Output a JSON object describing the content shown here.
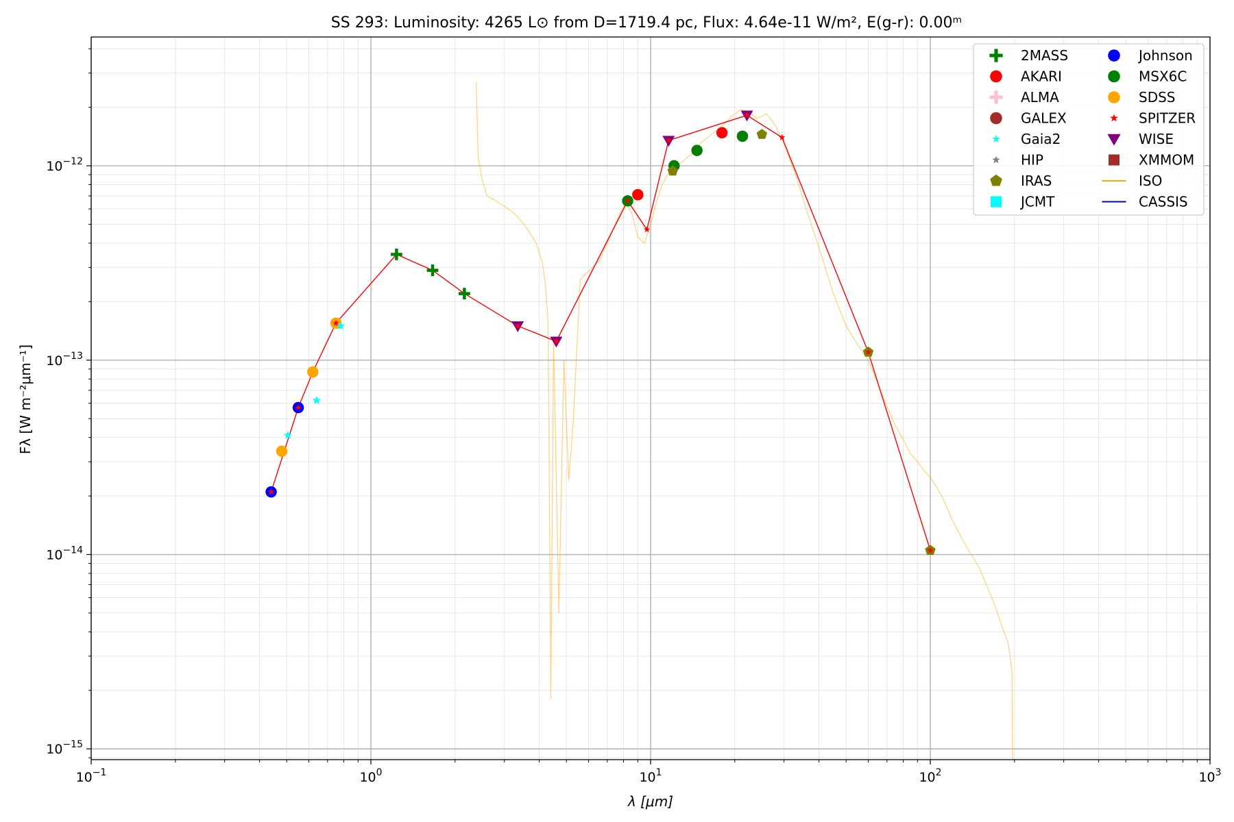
{
  "chart_data": {
    "type": "scatter",
    "title": "SS 293:  Luminosity: 4265 L⊙ from D=1719.4 pc, Flux: 4.64e-11 W/m², E(g-r): 0.00ᵐ",
    "xlabel": "λ [μm]",
    "ylabel": "Fλ [W m⁻²μm⁻¹]",
    "x_scale": "log",
    "y_scale": "log",
    "xlim": [
      0.1,
      1000
    ],
    "ylim": [
      8.8e-16,
      4.6e-12
    ],
    "grid": true,
    "legend_position": "top-right",
    "x_ticks": [
      {
        "value": 0.1,
        "base": "10",
        "exp": "−1"
      },
      {
        "value": 1,
        "base": "10",
        "exp": "0"
      },
      {
        "value": 10,
        "base": "10",
        "exp": "1"
      },
      {
        "value": 100,
        "base": "10",
        "exp": "2"
      },
      {
        "value": 1000,
        "base": "10",
        "exp": "3"
      }
    ],
    "y_ticks": [
      {
        "value": 1e-15,
        "base": "10",
        "exp": "−15"
      },
      {
        "value": 1e-14,
        "base": "10",
        "exp": "−14"
      },
      {
        "value": 1e-13,
        "base": "10",
        "exp": "−13"
      },
      {
        "value": 1e-12,
        "base": "10",
        "exp": "−12"
      }
    ],
    "legend": [
      {
        "label": "2MASS",
        "marker": "plus",
        "color": "#008000"
      },
      {
        "label": "AKARI",
        "marker": "circle",
        "color": "#ff0000"
      },
      {
        "label": "ALMA",
        "marker": "plus",
        "color": "#ffc0cb"
      },
      {
        "label": "GALEX",
        "marker": "circle",
        "color": "#a52a2a"
      },
      {
        "label": "Gaia2",
        "marker": "star",
        "color": "#00ffff"
      },
      {
        "label": "HIP",
        "marker": "star",
        "color": "#808080"
      },
      {
        "label": "IRAS",
        "marker": "pentagon",
        "color": "#808000"
      },
      {
        "label": "JCMT",
        "marker": "square",
        "color": "#00ffff"
      },
      {
        "label": "Johnson",
        "marker": "circle",
        "color": "#0000ff"
      },
      {
        "label": "MSX6C",
        "marker": "circle",
        "color": "#008000"
      },
      {
        "label": "SDSS",
        "marker": "circle",
        "color": "#ffa500"
      },
      {
        "label": "SPITZER",
        "marker": "star",
        "color": "#ff0000"
      },
      {
        "label": "WISE",
        "marker": "triangle-down",
        "color": "#800080"
      },
      {
        "label": "XMMOM",
        "marker": "square",
        "color": "#a52a2a"
      },
      {
        "label": "ISO",
        "marker": "line",
        "color": "#ffa500"
      },
      {
        "label": "CASSIS",
        "marker": "line",
        "color": "#0000cd"
      }
    ],
    "sed_line": {
      "color": "#ff0000",
      "x": [
        0.44,
        0.55,
        0.62,
        0.75,
        1.235,
        1.662,
        2.159,
        3.35,
        4.6,
        8.28,
        9.7,
        11.6,
        22.1,
        29.5,
        60,
        100
      ],
      "y": [
        2.1e-14,
        5.7e-14,
        8.7e-14,
        1.55e-13,
        3.5e-13,
        2.9e-13,
        2.2e-13,
        1.5e-13,
        1.25e-13,
        6.6e-13,
        4.7e-13,
        1.35e-12,
        1.82e-12,
        1.4e-12,
        1.1e-13,
        1.05e-14
      ]
    },
    "series": [
      {
        "name": "Johnson",
        "marker": "circle",
        "color": "#0000ff",
        "x": [
          0.44,
          0.55
        ],
        "y": [
          2.1e-14,
          5.7e-14
        ]
      },
      {
        "name": "SDSS",
        "marker": "circle",
        "color": "#ffa500",
        "x": [
          0.48,
          0.62,
          0.75
        ],
        "y": [
          3.4e-14,
          8.7e-14,
          1.55e-13
        ]
      },
      {
        "name": "Gaia2",
        "marker": "star",
        "color": "#00ffff",
        "x": [
          0.505,
          0.64,
          0.78
        ],
        "y": [
          4.1e-14,
          6.2e-14,
          1.5e-13
        ]
      },
      {
        "name": "2MASS",
        "marker": "plus",
        "color": "#008000",
        "x": [
          1.235,
          1.662,
          2.159
        ],
        "y": [
          3.5e-13,
          2.9e-13,
          2.2e-13
        ]
      },
      {
        "name": "WISE",
        "marker": "triangle-down",
        "color": "#800080",
        "x": [
          3.35,
          4.6,
          11.6,
          22.1
        ],
        "y": [
          1.5e-13,
          1.25e-13,
          1.35e-12,
          1.82e-12
        ]
      },
      {
        "name": "AKARI",
        "marker": "circle",
        "color": "#ff0000",
        "x": [
          9.0,
          18.0
        ],
        "y": [
          7.1e-13,
          1.48e-12
        ]
      },
      {
        "name": "MSX6C",
        "marker": "circle",
        "color": "#008000",
        "x": [
          8.28,
          12.13,
          14.65,
          21.3
        ],
        "y": [
          6.6e-13,
          1e-12,
          1.2e-12,
          1.42e-12
        ]
      },
      {
        "name": "IRAS",
        "marker": "pentagon",
        "color": "#808000",
        "x": [
          12,
          25,
          60,
          100
        ],
        "y": [
          9.4e-13,
          1.45e-12,
          1.1e-13,
          1.05e-14
        ]
      },
      {
        "name": "SPITZER",
        "marker": "star",
        "color": "#ff0000",
        "x": [
          0.44,
          0.55,
          0.75,
          3.35,
          4.6,
          8.28,
          9.7,
          11.6,
          22.1,
          29.5,
          60,
          100
        ],
        "y": [
          2.1e-14,
          5.7e-14,
          1.55e-13,
          1.5e-13,
          1.25e-13,
          6.6e-13,
          4.7e-13,
          1.35e-12,
          1.82e-12,
          1.4e-12,
          1.1e-13,
          1.05e-14
        ]
      }
    ],
    "iso_spectrum": {
      "name": "ISO",
      "color": "#ffa500",
      "x": [
        2.38,
        2.42,
        2.5,
        2.6,
        2.8,
        3.0,
        3.3,
        3.6,
        3.9,
        4.1,
        4.2,
        4.3,
        4.4,
        4.5,
        4.7,
        4.9,
        5.1,
        5.3,
        5.6,
        5.9,
        6.2,
        6.6,
        7.0,
        7.4,
        7.8,
        8.2,
        8.6,
        9.0,
        9.5,
        10.0,
        10.5,
        11.0,
        11.5,
        12.0,
        13.0,
        14.0,
        15.0,
        16.5,
        18.0,
        19.5,
        21.0,
        22.5,
        24.0,
        26.0,
        28.0,
        30.0,
        33.0,
        36.0,
        40.0,
        45.0,
        50.0,
        55.0,
        60.0,
        65.0,
        70.0,
        75.0,
        80.0,
        85.0,
        90.0,
        95.0,
        100.0,
        110.0,
        120.0,
        130.0,
        140.0,
        150.0,
        160.0,
        170.0,
        180.0,
        190.0,
        196.0,
        197.0
      ],
      "y": [
        2.7e-12,
        1.1e-12,
        8.5e-13,
        7e-13,
        6.6e-13,
        6.2e-13,
        5.6e-13,
        4.8e-13,
        4e-13,
        3.2e-13,
        2.5e-13,
        1.6e-13,
        1.8e-15,
        1.3e-13,
        5e-15,
        1e-13,
        2.4e-14,
        5e-14,
        2.6e-13,
        2.8e-13,
        3e-13,
        3.3e-13,
        4e-13,
        4.8e-13,
        5.8e-13,
        6.5e-13,
        5.6e-13,
        4.3e-13,
        4e-13,
        5e-13,
        6.5e-13,
        8e-13,
        9e-13,
        9.5e-13,
        1.05e-12,
        1.15e-12,
        1.3e-12,
        1.45e-12,
        1.6e-12,
        1.8e-12,
        1.95e-12,
        1.9e-12,
        1.75e-12,
        1.85e-12,
        1.6e-12,
        1.3e-12,
        9e-13,
        6e-13,
        3.8e-13,
        2.2e-13,
        1.5e-13,
        1.2e-13,
        1e-13,
        7.5e-14,
        5.8e-14,
        4.6e-14,
        3.9e-14,
        3.3e-14,
        3e-14,
        2.7e-14,
        2.5e-14,
        2e-14,
        1.5e-14,
        1.2e-14,
        1e-14,
        8.5e-15,
        6.8e-15,
        5.5e-15,
        4.3e-15,
        3.5e-15,
        2.5e-15,
        8.8e-16
      ]
    }
  }
}
